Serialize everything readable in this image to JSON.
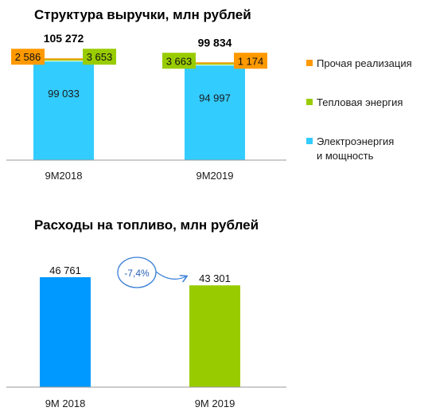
{
  "chart_data": [
    {
      "type": "bar",
      "stacked": true,
      "title": "Структура выручки, млн рублей",
      "categories": [
        "9M2018",
        "9M2019"
      ],
      "series": [
        {
          "name": "Электроэнергия и мощность",
          "values": [
            99033,
            94997
          ],
          "labels": [
            "99 033",
            "94 997"
          ],
          "color": "#33ccff"
        },
        {
          "name": "Тепловая энергия",
          "values": [
            3653,
            3663
          ],
          "labels": [
            "3 653",
            "3 663"
          ],
          "color": "#99cc00"
        },
        {
          "name": "Прочая реализация",
          "values": [
            2586,
            1174
          ],
          "labels": [
            "2 586",
            "1 174"
          ],
          "color": "#ff9900"
        }
      ],
      "totals": [
        "105 272",
        "99 834"
      ],
      "legend_position": "right",
      "grid": false
    },
    {
      "type": "bar",
      "title": "Расходы на топливо, млн рублей",
      "categories": [
        "9M 2018",
        "9M 2019"
      ],
      "values": [
        46761,
        43301
      ],
      "labels": [
        "46 761",
        "43 301"
      ],
      "colors": [
        "#0099ff",
        "#99cc00"
      ],
      "change_label": "-7,4%",
      "grid": false
    }
  ]
}
